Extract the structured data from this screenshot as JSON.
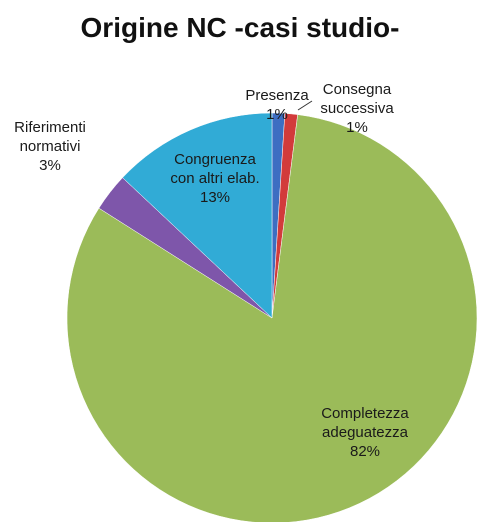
{
  "chart_data": {
    "type": "pie",
    "title": "Origine NC -casi studio-",
    "categories": [
      "Presenza",
      "Consegna successiva",
      "Completezza adeguatezza",
      "Riferimenti normativi",
      "Congruenza con altri elab."
    ],
    "values": [
      1,
      1,
      82,
      3,
      13
    ],
    "value_labels": [
      "1%",
      "1%",
      "82%",
      "3%",
      "13%"
    ],
    "colors": [
      "#3d6ec2",
      "#d23b3b",
      "#9bbb59",
      "#7e56aa",
      "#31abd6"
    ]
  }
}
